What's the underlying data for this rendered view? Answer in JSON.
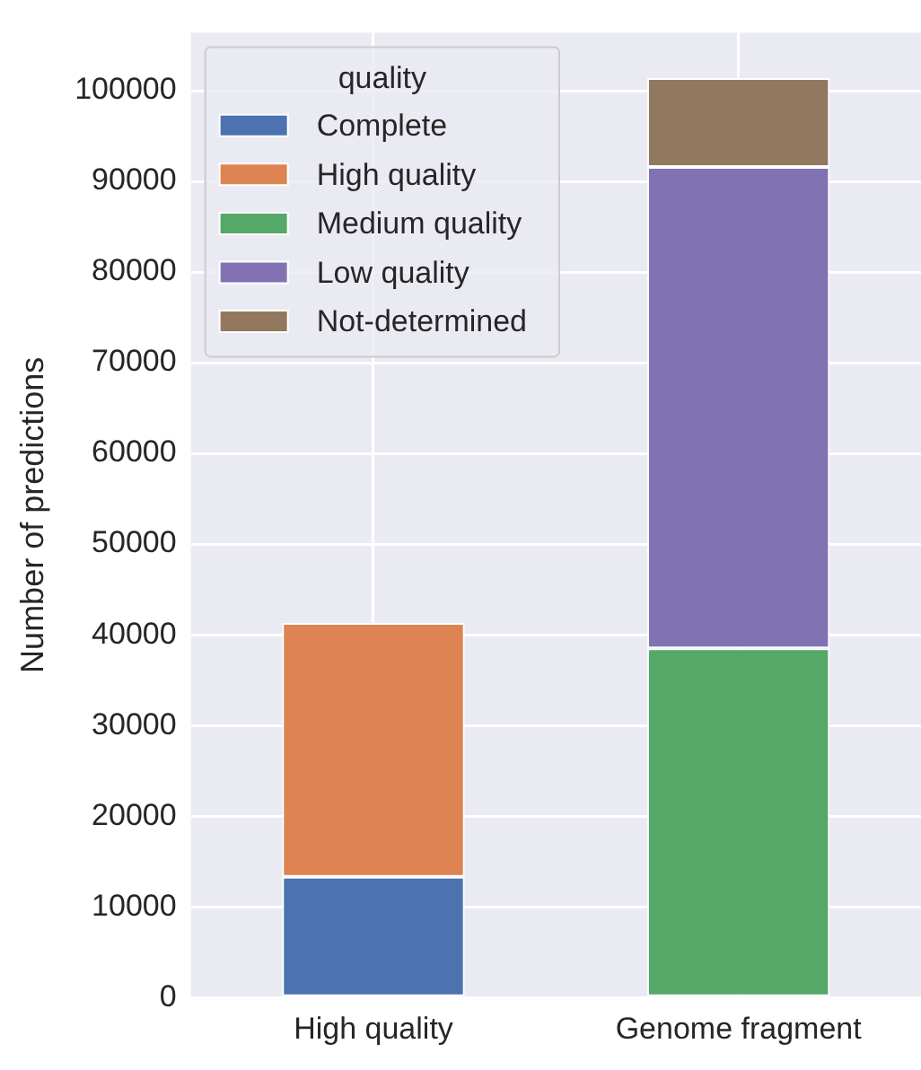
{
  "chart_data": {
    "type": "bar",
    "stacked": true,
    "ylabel": "Number of predictions",
    "legend_title": "quality",
    "legend": "top left",
    "grid": true,
    "categories": [
      "High quality",
      "Genome fragment"
    ],
    "series": [
      {
        "name": "Complete",
        "color": "#4c72b0",
        "values": [
          13300,
          null
        ]
      },
      {
        "name": "High quality",
        "color": "#dd8452",
        "values": [
          28000,
          null
        ]
      },
      {
        "name": "Medium quality",
        "color": "#55a868",
        "values": [
          null,
          38500
        ]
      },
      {
        "name": "Low quality",
        "color": "#8172b3",
        "values": [
          null,
          53100
        ]
      },
      {
        "name": "Not-determined",
        "color": "#937860",
        "values": [
          null,
          9800
        ]
      }
    ],
    "ylim": [
      0,
      106400
    ],
    "yticks": [
      0,
      10000,
      20000,
      30000,
      40000,
      50000,
      60000,
      70000,
      80000,
      90000,
      100000
    ]
  }
}
